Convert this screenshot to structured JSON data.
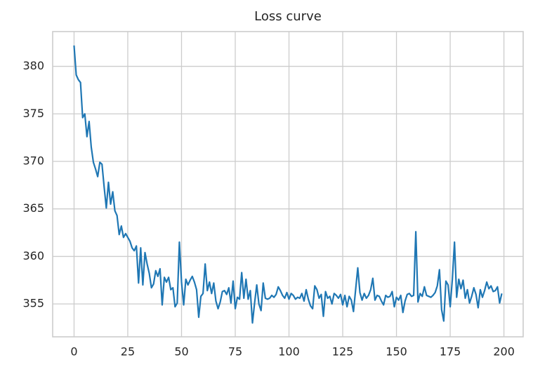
{
  "chart_data": {
    "type": "line",
    "title": "Loss curve",
    "x": [
      0,
      1,
      2,
      3,
      4,
      5,
      6,
      7,
      8,
      9,
      10,
      11,
      12,
      13,
      14,
      15,
      16,
      17,
      18,
      19,
      20,
      21,
      22,
      23,
      24,
      25,
      26,
      27,
      28,
      29,
      30,
      31,
      32,
      33,
      34,
      35,
      36,
      37,
      38,
      39,
      40,
      41,
      42,
      43,
      44,
      45,
      46,
      47,
      48,
      49,
      50,
      51,
      52,
      53,
      54,
      55,
      56,
      57,
      58,
      59,
      60,
      61,
      62,
      63,
      64,
      65,
      66,
      67,
      68,
      69,
      70,
      71,
      72,
      73,
      74,
      75,
      76,
      77,
      78,
      79,
      80,
      81,
      82,
      83,
      84,
      85,
      86,
      87,
      88,
      89,
      90,
      91,
      92,
      93,
      94,
      95,
      96,
      97,
      98,
      99,
      100,
      101,
      102,
      103,
      104,
      105,
      106,
      107,
      108,
      109,
      110,
      111,
      112,
      113,
      114,
      115,
      116,
      117,
      118,
      119,
      120,
      121,
      122,
      123,
      124,
      125,
      126,
      127,
      128,
      129,
      130,
      131,
      132,
      133,
      134,
      135,
      136,
      137,
      138,
      139,
      140,
      141,
      142,
      143,
      144,
      145,
      146,
      147,
      148,
      149,
      150,
      151,
      152,
      153,
      154,
      155,
      156,
      157,
      158,
      159,
      160,
      161,
      162,
      163,
      164,
      165,
      166,
      167,
      168,
      169,
      170,
      171,
      172,
      173,
      174,
      175,
      176,
      177,
      178,
      179,
      180,
      181,
      182,
      183,
      184,
      185,
      186,
      187,
      188,
      189,
      190,
      191,
      192,
      193,
      194,
      195,
      196,
      197,
      198,
      199
    ],
    "series": [
      {
        "color": "#1f77b4",
        "values": [
          382.2,
          379.1,
          378.6,
          378.3,
          374.6,
          375.0,
          372.6,
          374.2,
          371.5,
          369.9,
          369.2,
          368.4,
          369.9,
          369.7,
          367.3,
          365.1,
          367.8,
          365.5,
          366.8,
          364.8,
          364.3,
          362.3,
          363.2,
          362.0,
          362.4,
          362.0,
          361.6,
          360.9,
          360.6,
          361.1,
          357.2,
          360.9,
          357.0,
          360.4,
          359.2,
          358.2,
          356.7,
          357.1,
          358.5,
          357.9,
          358.7,
          354.9,
          357.8,
          357.3,
          357.8,
          356.5,
          356.7,
          354.7,
          355.1,
          361.5,
          357.3,
          354.9,
          357.6,
          357.0,
          357.5,
          357.9,
          357.3,
          356.5,
          353.6,
          355.8,
          356.1,
          359.2,
          356.4,
          357.3,
          356.1,
          357.2,
          355.3,
          354.5,
          355.2,
          356.3,
          356.4,
          356.0,
          356.7,
          355.1,
          357.4,
          354.5,
          355.7,
          355.5,
          358.3,
          355.6,
          357.6,
          355.5,
          356.4,
          353.0,
          355.1,
          357.0,
          355.0,
          354.3,
          357.2,
          355.6,
          355.5,
          355.6,
          355.9,
          355.7,
          356.0,
          356.8,
          356.4,
          355.9,
          355.6,
          356.2,
          355.5,
          356.1,
          355.9,
          355.5,
          355.7,
          355.6,
          356.1,
          355.3,
          356.5,
          355.5,
          354.8,
          354.5,
          356.9,
          356.5,
          355.6,
          356.0,
          353.7,
          356.3,
          355.6,
          355.8,
          355.0,
          356.1,
          355.9,
          355.6,
          356.0,
          354.9,
          355.9,
          354.7,
          355.8,
          355.4,
          354.2,
          356.5,
          358.8,
          356.2,
          355.4,
          356.1,
          355.6,
          355.9,
          356.5,
          357.7,
          355.4,
          355.9,
          355.8,
          355.3,
          354.9,
          355.9,
          355.7,
          355.8,
          356.3,
          354.7,
          355.7,
          355.4,
          355.9,
          354.1,
          355.3,
          356.0,
          356.1,
          355.8,
          355.9,
          362.6,
          355.2,
          356.1,
          355.8,
          356.8,
          355.9,
          355.8,
          355.7,
          355.9,
          356.2,
          356.9,
          358.6,
          354.4,
          353.2,
          357.4,
          357.0,
          354.7,
          357.6,
          361.5,
          355.7,
          357.6,
          356.6,
          357.5,
          355.6,
          356.5,
          355.1,
          355.8,
          356.7,
          356.0,
          354.6,
          356.5,
          355.7,
          356.4,
          357.3,
          356.6,
          356.9,
          356.3,
          356.4,
          356.8,
          355.1,
          356.1
        ]
      }
    ],
    "xlim": [
      -9.95,
      208.95
    ],
    "xticks": [
      0,
      25,
      50,
      75,
      100,
      125,
      150,
      175,
      200
    ],
    "ylim": [
      351.54,
      383.66
    ],
    "yticks": [
      355,
      360,
      365,
      370,
      375,
      380
    ],
    "grid": true
  }
}
